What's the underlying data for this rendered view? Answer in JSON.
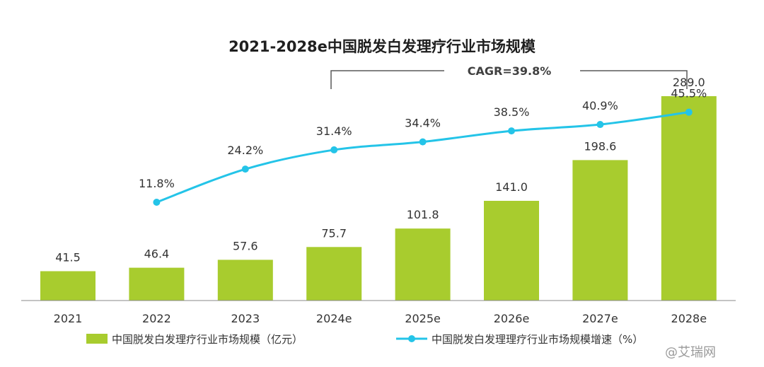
{
  "chart_data": {
    "type": "bar+line",
    "title": "2021-2028e中国脱发白发理疗行业市场规模",
    "annotation": "CAGR=39.8%",
    "categories": [
      "2021",
      "2022",
      "2023",
      "2024e",
      "2025e",
      "2026e",
      "2027e",
      "2028e"
    ],
    "series": [
      {
        "name": "中国脱发白发理疗行业市场规模（亿元）",
        "type": "bar",
        "values": [
          41.5,
          46.4,
          57.6,
          75.7,
          101.8,
          141.0,
          198.6,
          289.0
        ],
        "labels": [
          "41.5",
          "46.4",
          "57.6",
          "75.7",
          "101.8",
          "141.0",
          "198.6",
          "289.0"
        ],
        "color": "#a8cc2e"
      },
      {
        "name": "中国脱发白发理理疗行业市场规模增速（%）",
        "type": "line",
        "values": [
          null,
          11.8,
          24.2,
          31.4,
          34.4,
          38.5,
          40.9,
          45.5
        ],
        "labels": [
          "",
          "11.8%",
          "24.2%",
          "31.4%",
          "34.4%",
          "38.5%",
          "40.9%",
          "45.5%"
        ],
        "color": "#24c4e8"
      }
    ],
    "ylim_bar": [
      0,
      340
    ],
    "ylim_line": [
      -25,
      65
    ],
    "legend": "bottom"
  },
  "watermark": "@艾瑞网"
}
